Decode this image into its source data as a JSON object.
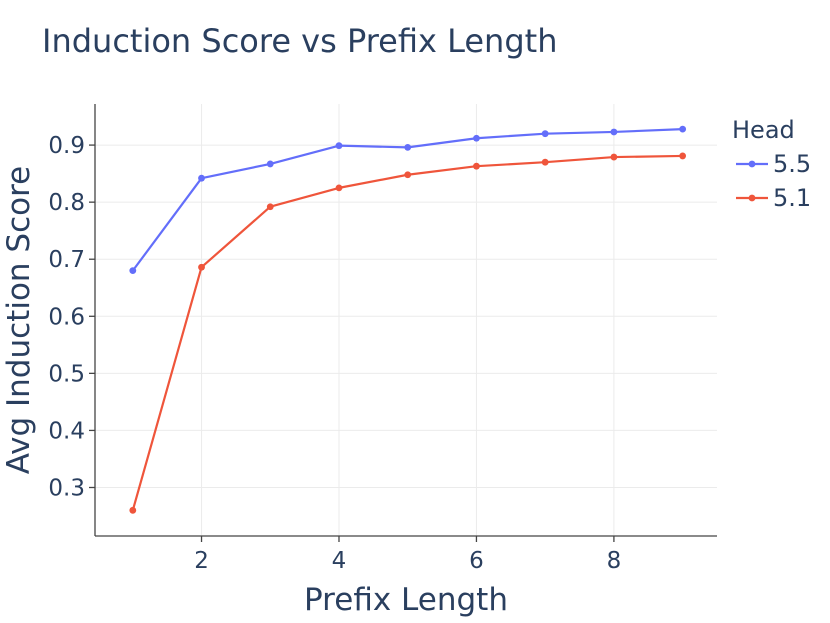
{
  "chart_data": {
    "type": "line",
    "title": "Induction Score vs Prefix Length",
    "xlabel": "Prefix Length",
    "ylabel": "Avg Induction Score",
    "x": [
      1,
      2,
      3,
      4,
      5,
      6,
      7,
      8,
      9
    ],
    "xlim": [
      0.45,
      9.5
    ],
    "ylim": [
      0.215,
      0.972
    ],
    "xticks": [
      2,
      4,
      6,
      8
    ],
    "yticks": [
      0.3,
      0.4,
      0.5,
      0.6,
      0.7,
      0.8,
      0.9
    ],
    "grid": true,
    "legend": {
      "title": "Head",
      "placement": "top-right-outside"
    },
    "series": [
      {
        "name": "5.5",
        "color": "#636efa",
        "values": [
          0.68,
          0.842,
          0.867,
          0.899,
          0.896,
          0.912,
          0.92,
          0.923,
          0.928
        ]
      },
      {
        "name": "5.1",
        "color": "#ef553b",
        "values": [
          0.26,
          0.686,
          0.792,
          0.825,
          0.848,
          0.863,
          0.87,
          0.879,
          0.881
        ]
      }
    ]
  }
}
